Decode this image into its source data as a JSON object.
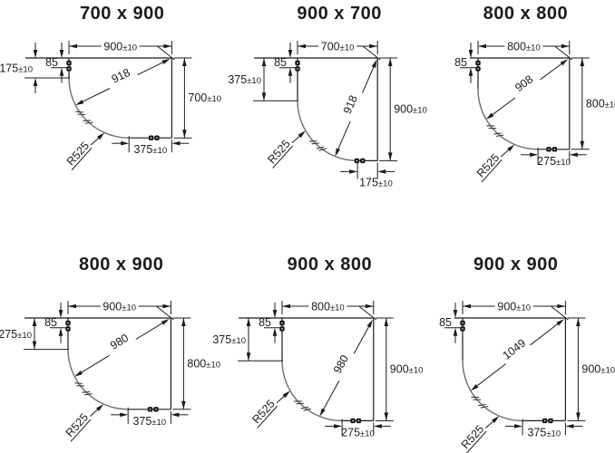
{
  "drawing": {
    "description": "Quadrant shower enclosure dimension diagrams",
    "ink_color": "#1c1c1c",
    "arc_color": "#6e6e6e",
    "background": "#ffffff"
  },
  "diagrams": [
    {
      "title": "700 x 900",
      "top": {
        "value": "900",
        "tol": "±10"
      },
      "right": {
        "value": "700",
        "tol": "±10"
      },
      "left": {
        "value": "175",
        "tol": "±10"
      },
      "bottom": {
        "value": "375",
        "tol": "±10"
      },
      "hinge_offset": "85",
      "diagonal": "918",
      "radius": "R525"
    },
    {
      "title": "900 x 700",
      "top": {
        "value": "700",
        "tol": "±10"
      },
      "right": {
        "value": "900",
        "tol": "±10"
      },
      "left": {
        "value": "375",
        "tol": "±10"
      },
      "bottom": {
        "value": "175",
        "tol": "±10"
      },
      "hinge_offset": "85",
      "diagonal": "918",
      "radius": "R525"
    },
    {
      "title": "800 x 800",
      "top": {
        "value": "800",
        "tol": "±10"
      },
      "right": {
        "value": "800",
        "tol": "±10"
      },
      "left": null,
      "bottom": {
        "value": "275",
        "tol": "±10"
      },
      "hinge_offset": "85",
      "diagonal": "908",
      "radius": "R525"
    },
    {
      "title": "800 x 900",
      "top": {
        "value": "900",
        "tol": "±10"
      },
      "right": {
        "value": "800",
        "tol": "±10"
      },
      "left": {
        "value": "275",
        "tol": "±10"
      },
      "bottom": {
        "value": "375",
        "tol": "±10"
      },
      "hinge_offset": "85",
      "diagonal": "980",
      "radius": "R525"
    },
    {
      "title": "900 x 800",
      "top": {
        "value": "800",
        "tol": "±10"
      },
      "right": {
        "value": "900",
        "tol": "±10"
      },
      "left": {
        "value": "375",
        "tol": "±10"
      },
      "bottom": {
        "value": "275",
        "tol": "±10"
      },
      "hinge_offset": "85",
      "diagonal": "980",
      "radius": "R525"
    },
    {
      "title": "900 x 900",
      "top": {
        "value": "900",
        "tol": "±10"
      },
      "right": {
        "value": "900",
        "tol": "±10"
      },
      "left": null,
      "bottom": {
        "value": "375",
        "tol": "±10"
      },
      "hinge_offset": "85",
      "diagonal": "1049",
      "radius": "R525"
    }
  ]
}
